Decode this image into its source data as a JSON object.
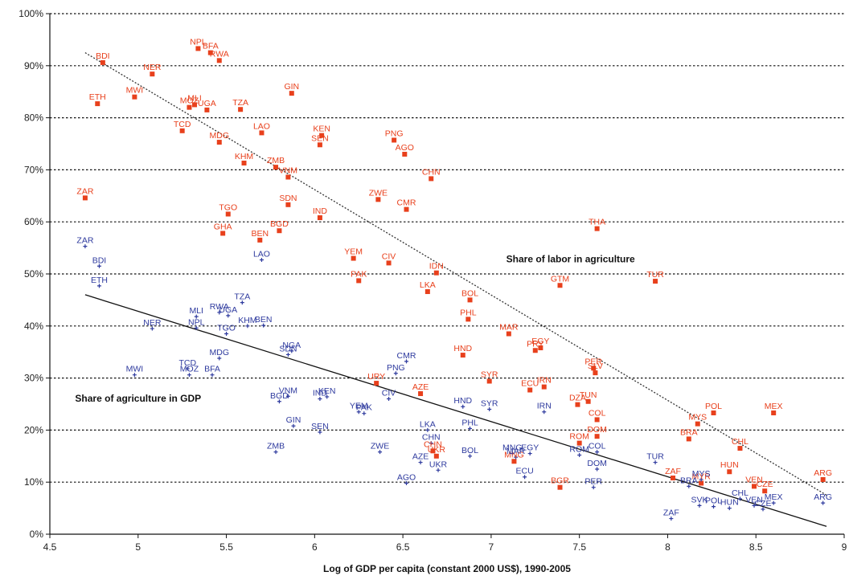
{
  "chart_data": {
    "type": "scatter",
    "xlabel": "Log of GDP per capita (constant 2000 US$), 1990-2005",
    "ylabel": "",
    "xlim": [
      4.5,
      9
    ],
    "ylim": [
      0,
      100
    ],
    "x_ticks": [
      "4.5",
      "5",
      "5.5",
      "6",
      "6.5",
      "7",
      "7.5",
      "8",
      "8.5",
      "9"
    ],
    "y_ticks": [
      "0%",
      "10%",
      "20%",
      "30%",
      "40%",
      "50%",
      "60%",
      "70%",
      "80%",
      "90%",
      "100%"
    ],
    "grid": "horizontal dashed",
    "annotations": [
      {
        "text": "Share of labor in agriculture",
        "x": 7.45,
        "y": 52.2
      },
      {
        "text": "Share of agriculture in GDP",
        "x": 5.0,
        "y": 25.5
      }
    ],
    "series": [
      {
        "color": "#e8401c",
        "marker": "square",
        "trendline": {
          "style": "dashed",
          "x": [
            4.7,
            8.9
          ],
          "y": [
            92.5,
            7.5
          ]
        },
        "points": [
          {
            "label": "BDI",
            "x": 4.8,
            "y": 90.6
          },
          {
            "label": "NPL",
            "x": 5.34,
            "y": 93.3
          },
          {
            "label": "BFA",
            "x": 5.41,
            "y": 92.5
          },
          {
            "label": "RWA",
            "x": 5.46,
            "y": 91.0
          },
          {
            "label": "NER",
            "x": 5.08,
            "y": 88.4
          },
          {
            "label": "MWI",
            "x": 4.98,
            "y": 84.0
          },
          {
            "label": "ETH",
            "x": 4.77,
            "y": 82.7
          },
          {
            "label": "MLI",
            "x": 5.32,
            "y": 82.5
          },
          {
            "label": "MOZ",
            "x": 5.29,
            "y": 82.0
          },
          {
            "label": "UGA",
            "x": 5.39,
            "y": 81.5
          },
          {
            "label": "TZA",
            "x": 5.58,
            "y": 81.6
          },
          {
            "label": "GIN",
            "x": 5.87,
            "y": 84.7
          },
          {
            "label": "TCD",
            "x": 5.25,
            "y": 77.5
          },
          {
            "label": "LAO",
            "x": 5.7,
            "y": 77.1
          },
          {
            "label": "MDG",
            "x": 5.46,
            "y": 75.3
          },
          {
            "label": "KEN",
            "x": 6.04,
            "y": 76.6
          },
          {
            "label": "SEN",
            "x": 6.03,
            "y": 74.8
          },
          {
            "label": "PNG",
            "x": 6.45,
            "y": 75.7
          },
          {
            "label": "AGO",
            "x": 6.51,
            "y": 73.0
          },
          {
            "label": "KHM",
            "x": 5.6,
            "y": 71.3
          },
          {
            "label": "ZMB",
            "x": 5.78,
            "y": 70.5
          },
          {
            "label": "VNM",
            "x": 5.85,
            "y": 68.6
          },
          {
            "label": "CHN",
            "x": 6.66,
            "y": 68.3
          },
          {
            "label": "ZAR",
            "x": 4.7,
            "y": 64.6
          },
          {
            "label": "ZWE",
            "x": 6.36,
            "y": 64.3
          },
          {
            "label": "CMR",
            "x": 6.52,
            "y": 62.4
          },
          {
            "label": "SDN",
            "x": 5.85,
            "y": 63.3
          },
          {
            "label": "TGO",
            "x": 5.51,
            "y": 61.5
          },
          {
            "label": "IND",
            "x": 6.03,
            "y": 60.8
          },
          {
            "label": "THA",
            "x": 7.6,
            "y": 58.7
          },
          {
            "label": "GHA",
            "x": 5.48,
            "y": 57.8
          },
          {
            "label": "BGD",
            "x": 5.8,
            "y": 58.3
          },
          {
            "label": "BEN",
            "x": 5.69,
            "y": 56.5
          },
          {
            "label": "YEM",
            "x": 6.22,
            "y": 53.0
          },
          {
            "label": "CIV",
            "x": 6.42,
            "y": 52.1
          },
          {
            "label": "IDN",
            "x": 6.69,
            "y": 50.2
          },
          {
            "label": "PAK",
            "x": 6.25,
            "y": 48.7
          },
          {
            "label": "LKA",
            "x": 6.64,
            "y": 46.6
          },
          {
            "label": "GTM",
            "x": 7.39,
            "y": 47.8
          },
          {
            "label": "TUR",
            "x": 7.93,
            "y": 48.6
          },
          {
            "label": "BOL",
            "x": 6.88,
            "y": 45.0
          },
          {
            "label": "PHL",
            "x": 6.87,
            "y": 41.3
          },
          {
            "label": "MAR",
            "x": 7.1,
            "y": 38.5
          },
          {
            "label": "EGY",
            "x": 7.28,
            "y": 35.8
          },
          {
            "label": "PRY",
            "x": 7.25,
            "y": 35.3
          },
          {
            "label": "HND",
            "x": 6.84,
            "y": 34.4
          },
          {
            "label": "PER",
            "x": 7.58,
            "y": 31.9
          },
          {
            "label": "SLV",
            "x": 7.59,
            "y": 31.0
          },
          {
            "label": "SYR",
            "x": 6.99,
            "y": 29.4
          },
          {
            "label": "ECU",
            "x": 7.22,
            "y": 27.7
          },
          {
            "label": "IRN",
            "x": 7.3,
            "y": 28.3
          },
          {
            "label": "URY",
            "x": 6.35,
            "y": 29.0
          },
          {
            "label": "AZE",
            "x": 6.6,
            "y": 27.0
          },
          {
            "label": "TUN",
            "x": 7.55,
            "y": 25.5
          },
          {
            "label": "DZA",
            "x": 7.49,
            "y": 24.9
          },
          {
            "label": "COL",
            "x": 7.6,
            "y": 22.0
          },
          {
            "label": "DOM",
            "x": 7.6,
            "y": 18.8
          },
          {
            "label": "ROM",
            "x": 7.5,
            "y": 17.5
          },
          {
            "label": "UKR",
            "x": 6.69,
            "y": 15.0
          },
          {
            "label": "CHN",
            "x": 6.67,
            "y": 16.0
          },
          {
            "label": "MNG",
            "x": 7.13,
            "y": 14.0
          },
          {
            "label": "POL",
            "x": 8.26,
            "y": 23.3
          },
          {
            "label": "MYS",
            "x": 8.17,
            "y": 21.2
          },
          {
            "label": "MEX",
            "x": 8.6,
            "y": 23.3
          },
          {
            "label": "BRA",
            "x": 8.12,
            "y": 18.3
          },
          {
            "label": "CHL",
            "x": 8.41,
            "y": 16.5
          },
          {
            "label": "HUN",
            "x": 8.35,
            "y": 12.0
          },
          {
            "label": "ZAF",
            "x": 8.03,
            "y": 10.8
          },
          {
            "label": "MYR",
            "x": 8.19,
            "y": 9.8
          },
          {
            "label": "BGR",
            "x": 7.39,
            "y": 9.0
          },
          {
            "label": "VEN",
            "x": 8.49,
            "y": 9.2
          },
          {
            "label": "CZE",
            "x": 8.55,
            "y": 8.3
          },
          {
            "label": "ARG",
            "x": 8.88,
            "y": 10.5
          }
        ]
      },
      {
        "color": "#2e3a9e",
        "marker": "plus",
        "trendline": {
          "style": "solid",
          "x": [
            4.7,
            8.9
          ],
          "y": [
            46.0,
            1.5
          ]
        },
        "points": [
          {
            "label": "ZAR",
            "x": 4.7,
            "y": 55.3
          },
          {
            "label": "BDI",
            "x": 4.78,
            "y": 51.5
          },
          {
            "label": "ETH",
            "x": 4.78,
            "y": 47.7
          },
          {
            "label": "LAO",
            "x": 5.7,
            "y": 52.7
          },
          {
            "label": "TZA",
            "x": 5.59,
            "y": 44.5
          },
          {
            "label": "RWA",
            "x": 5.46,
            "y": 42.6
          },
          {
            "label": "UGA",
            "x": 5.51,
            "y": 42.0
          },
          {
            "label": "MLI",
            "x": 5.33,
            "y": 41.8
          },
          {
            "label": "NPL",
            "x": 5.33,
            "y": 39.6
          },
          {
            "label": "KHM",
            "x": 5.62,
            "y": 40.0
          },
          {
            "label": "BEN",
            "x": 5.71,
            "y": 40.1
          },
          {
            "label": "NER",
            "x": 5.08,
            "y": 39.5
          },
          {
            "label": "TGO",
            "x": 5.5,
            "y": 38.5
          },
          {
            "label": "NGA",
            "x": 5.87,
            "y": 35.2
          },
          {
            "label": "SDN",
            "x": 5.85,
            "y": 34.5
          },
          {
            "label": "MDG",
            "x": 5.46,
            "y": 33.8
          },
          {
            "label": "TCD",
            "x": 5.28,
            "y": 31.8
          },
          {
            "label": "MOZ",
            "x": 5.29,
            "y": 30.6
          },
          {
            "label": "BFA",
            "x": 5.42,
            "y": 30.6
          },
          {
            "label": "MWI",
            "x": 4.98,
            "y": 30.6
          },
          {
            "label": "CMR",
            "x": 6.52,
            "y": 33.2
          },
          {
            "label": "PNG",
            "x": 6.46,
            "y": 30.9
          },
          {
            "label": "VNM",
            "x": 5.85,
            "y": 26.5
          },
          {
            "label": "BGD",
            "x": 5.8,
            "y": 25.5
          },
          {
            "label": "IND",
            "x": 6.03,
            "y": 26.0
          },
          {
            "label": "KEN",
            "x": 6.07,
            "y": 26.4
          },
          {
            "label": "CIV",
            "x": 6.42,
            "y": 26.0
          },
          {
            "label": "YEM",
            "x": 6.25,
            "y": 23.5
          },
          {
            "label": "PAK",
            "x": 6.28,
            "y": 23.2
          },
          {
            "label": "GIN",
            "x": 5.88,
            "y": 20.8
          },
          {
            "label": "SEN",
            "x": 6.03,
            "y": 19.6
          },
          {
            "label": "ZMB",
            "x": 5.78,
            "y": 15.8
          },
          {
            "label": "ZWE",
            "x": 6.37,
            "y": 15.8
          },
          {
            "label": "HND",
            "x": 6.84,
            "y": 24.5
          },
          {
            "label": "SYR",
            "x": 6.99,
            "y": 24.0
          },
          {
            "label": "PHL",
            "x": 6.88,
            "y": 20.3
          },
          {
            "label": "IRN",
            "x": 7.3,
            "y": 23.5
          },
          {
            "label": "LKA",
            "x": 6.64,
            "y": 20.0
          },
          {
            "label": "CHN",
            "x": 6.66,
            "y": 17.5
          },
          {
            "label": "AZE",
            "x": 6.6,
            "y": 13.8
          },
          {
            "label": "UKR",
            "x": 6.7,
            "y": 12.3
          },
          {
            "label": "AGO",
            "x": 6.52,
            "y": 9.8
          },
          {
            "label": "BOL",
            "x": 6.88,
            "y": 15.0
          },
          {
            "label": "MNG",
            "x": 7.12,
            "y": 15.5
          },
          {
            "label": "EGY",
            "x": 7.22,
            "y": 15.5
          },
          {
            "label": "MAR",
            "x": 7.14,
            "y": 14.8
          },
          {
            "label": "ECU",
            "x": 7.19,
            "y": 11.0
          },
          {
            "label": "ROM",
            "x": 7.5,
            "y": 15.2
          },
          {
            "label": "COL",
            "x": 7.6,
            "y": 15.8
          },
          {
            "label": "DOM",
            "x": 7.6,
            "y": 12.5
          },
          {
            "label": "PER",
            "x": 7.58,
            "y": 9.0
          },
          {
            "label": "ZAF",
            "x": 8.02,
            "y": 3.0
          },
          {
            "label": "TUR",
            "x": 7.93,
            "y": 13.8
          },
          {
            "label": "BRA",
            "x": 8.12,
            "y": 9.2
          },
          {
            "label": "MYS",
            "x": 8.19,
            "y": 10.5
          },
          {
            "label": "SVK",
            "x": 8.18,
            "y": 5.5
          },
          {
            "label": "POL",
            "x": 8.26,
            "y": 5.3
          },
          {
            "label": "CHL",
            "x": 8.41,
            "y": 6.8
          },
          {
            "label": "HUN",
            "x": 8.35,
            "y": 5.0
          },
          {
            "label": "VEN",
            "x": 8.49,
            "y": 5.5
          },
          {
            "label": "MEX",
            "x": 8.6,
            "y": 6.0
          },
          {
            "label": "CZE",
            "x": 8.54,
            "y": 4.8
          },
          {
            "label": "ARG",
            "x": 8.88,
            "y": 6.0
          }
        ]
      }
    ]
  }
}
